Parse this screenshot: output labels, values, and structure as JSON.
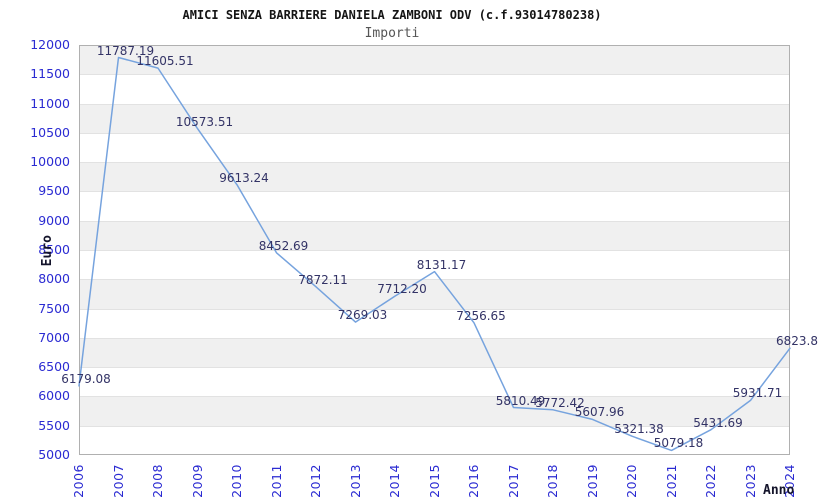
{
  "chart_data": {
    "type": "line",
    "title": "AMICI SENZA BARRIERE DANIELA ZAMBONI ODV (c.f.93014780238)",
    "subtitle": "Importi",
    "xlabel": "Anno",
    "ylabel": "Euro",
    "x": [
      "2006",
      "2007",
      "2008",
      "2009",
      "2010",
      "2011",
      "2012",
      "2013",
      "2014",
      "2015",
      "2016",
      "2017",
      "2018",
      "2019",
      "2020",
      "2021",
      "2022",
      "2023",
      "2024"
    ],
    "values": [
      6179.08,
      11787.19,
      11605.51,
      10573.51,
      9613.24,
      8452.69,
      7872.11,
      7269.03,
      7712.2,
      8131.17,
      7256.65,
      5810.49,
      5772.42,
      5607.96,
      5321.38,
      5079.18,
      5431.69,
      5931.71,
      6823.8
    ],
    "point_labels": [
      "6179.08",
      "11787.19",
      "11605.51",
      "10573.51",
      "9613.24",
      "8452.69",
      "7872.11",
      "7269.03",
      "7712.20",
      "8131.17",
      "7256.65",
      "5810.49",
      "5772.42",
      "5607.96",
      "5321.38",
      "5079.18",
      "5431.69",
      "5931.71",
      "6823.8"
    ],
    "ylim": [
      5000,
      12000
    ],
    "ytick_step": 500,
    "grid": "alternating-horizontal-bands",
    "legend": "none",
    "colors": {
      "line": "#76a3de",
      "point_label": "#333366",
      "tick_label": "#2b2bd2",
      "axis_title": "#14142b",
      "title": "#141414",
      "subtitle": "#555555",
      "band": "#f0f0f0",
      "gridline": "#e2e2e2",
      "plot_border": "#b0b0b0",
      "background": "#ffffff"
    }
  }
}
